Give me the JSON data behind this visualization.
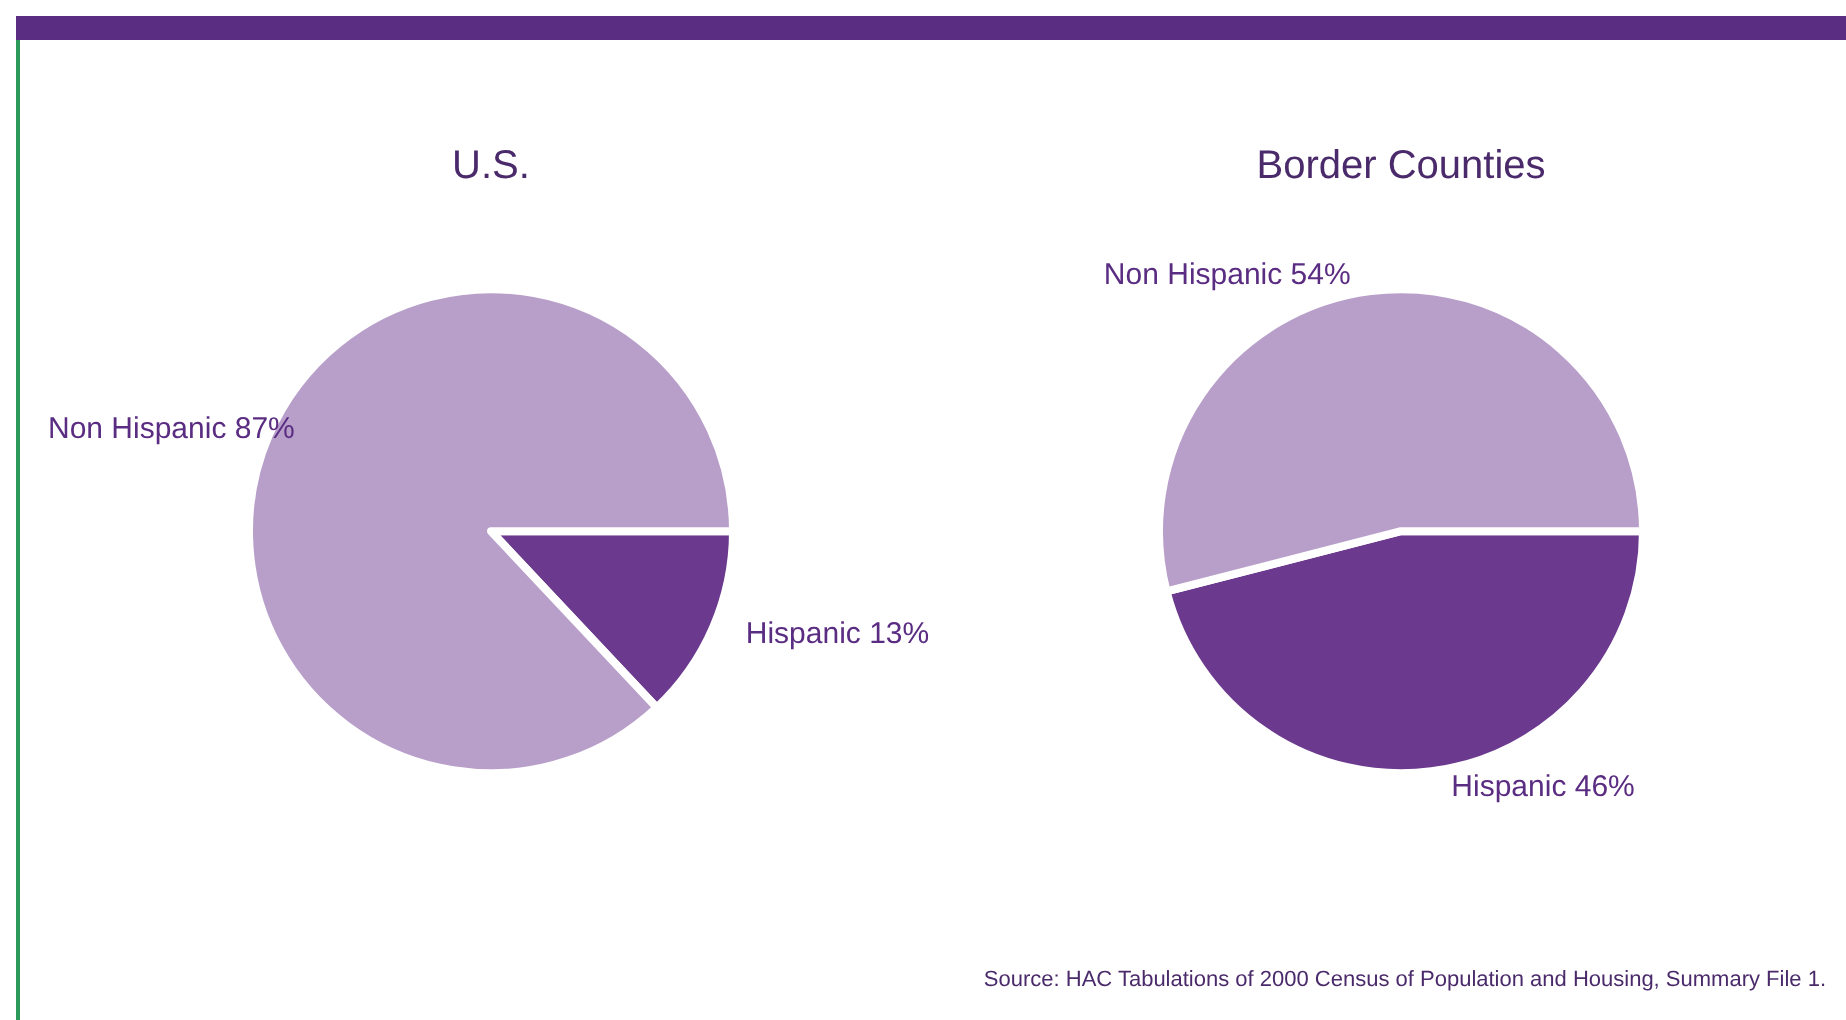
{
  "chart_data": [
    {
      "type": "pie",
      "title": "U.S.",
      "categories": [
        "Hispanic",
        "Non Hispanic"
      ],
      "values": [
        13,
        87
      ],
      "value_labels": [
        "13%",
        "87%"
      ],
      "colors": [
        "#6b3a8e",
        "#b89fca"
      ]
    },
    {
      "type": "pie",
      "title": "Border Counties",
      "categories": [
        "Hispanic",
        "Non Hispanic"
      ],
      "values": [
        46,
        54
      ],
      "value_labels": [
        "46%",
        "54%"
      ],
      "colors": [
        "#6b3a8e",
        "#b89fca"
      ],
      "annotations": [
        "Source: HAC Tabulations of 2000 Census of Population and Housing, Summary File 1."
      ]
    }
  ]
}
